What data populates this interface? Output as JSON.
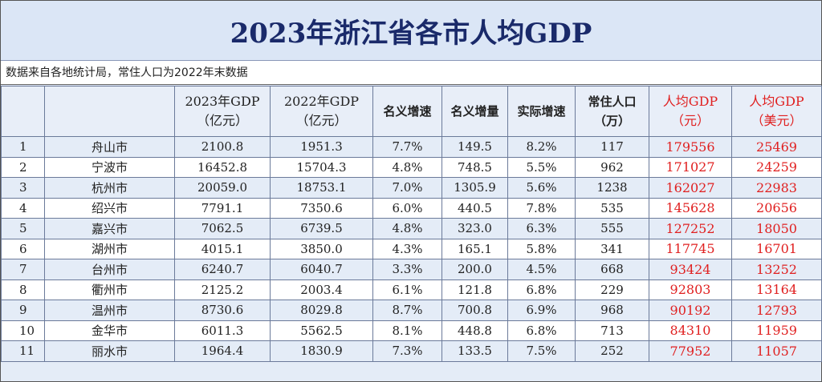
{
  "title": "2023年浙江省各市人均GDP",
  "note": "数据来自各地统计局，常住人口为2022年末数据",
  "headers": {
    "rank": "",
    "city": "",
    "gdp2023_l1": "2023年GDP",
    "gdp2023_l2": "（亿元）",
    "gdp2022_l1": "2022年GDP",
    "gdp2022_l2": "（亿元）",
    "nominal_growth": "名义增速",
    "nominal_increase": "名义增量",
    "real_growth": "实际增速",
    "population_l1": "常住人口",
    "population_l2": "（万）",
    "per_capita_cny_l1": "人均GDP",
    "per_capita_cny_l2": "（元）",
    "per_capita_usd_l1": "人均GDP",
    "per_capita_usd_l2": "（美元）"
  },
  "rows": [
    {
      "rank": "1",
      "city": "舟山市",
      "gdp2023": "2100.8",
      "gdp2022": "1951.3",
      "nominal_growth": "7.7%",
      "nominal_increase": "149.5",
      "real_growth": "8.2%",
      "population": "117",
      "per_capita_cny": "179556",
      "per_capita_usd": "25469"
    },
    {
      "rank": "2",
      "city": "宁波市",
      "gdp2023": "16452.8",
      "gdp2022": "15704.3",
      "nominal_growth": "4.8%",
      "nominal_increase": "748.5",
      "real_growth": "5.5%",
      "population": "962",
      "per_capita_cny": "171027",
      "per_capita_usd": "24259"
    },
    {
      "rank": "3",
      "city": "杭州市",
      "gdp2023": "20059.0",
      "gdp2022": "18753.1",
      "nominal_growth": "7.0%",
      "nominal_increase": "1305.9",
      "real_growth": "5.6%",
      "population": "1238",
      "per_capita_cny": "162027",
      "per_capita_usd": "22983"
    },
    {
      "rank": "4",
      "city": "绍兴市",
      "gdp2023": "7791.1",
      "gdp2022": "7350.6",
      "nominal_growth": "6.0%",
      "nominal_increase": "440.5",
      "real_growth": "7.8%",
      "population": "535",
      "per_capita_cny": "145628",
      "per_capita_usd": "20656"
    },
    {
      "rank": "5",
      "city": "嘉兴市",
      "gdp2023": "7062.5",
      "gdp2022": "6739.5",
      "nominal_growth": "4.8%",
      "nominal_increase": "323.0",
      "real_growth": "6.3%",
      "population": "555",
      "per_capita_cny": "127252",
      "per_capita_usd": "18050"
    },
    {
      "rank": "6",
      "city": "湖州市",
      "gdp2023": "4015.1",
      "gdp2022": "3850.0",
      "nominal_growth": "4.3%",
      "nominal_increase": "165.1",
      "real_growth": "5.8%",
      "population": "341",
      "per_capita_cny": "117745",
      "per_capita_usd": "16701"
    },
    {
      "rank": "7",
      "city": "台州市",
      "gdp2023": "6240.7",
      "gdp2022": "6040.7",
      "nominal_growth": "3.3%",
      "nominal_increase": "200.0",
      "real_growth": "4.5%",
      "population": "668",
      "per_capita_cny": "93424",
      "per_capita_usd": "13252"
    },
    {
      "rank": "8",
      "city": "衢州市",
      "gdp2023": "2125.2",
      "gdp2022": "2003.4",
      "nominal_growth": "6.1%",
      "nominal_increase": "121.8",
      "real_growth": "6.8%",
      "population": "229",
      "per_capita_cny": "92803",
      "per_capita_usd": "13164"
    },
    {
      "rank": "9",
      "city": "温州市",
      "gdp2023": "8730.6",
      "gdp2022": "8029.8",
      "nominal_growth": "8.7%",
      "nominal_increase": "700.8",
      "real_growth": "6.9%",
      "population": "968",
      "per_capita_cny": "90192",
      "per_capita_usd": "12793"
    },
    {
      "rank": "10",
      "city": "金华市",
      "gdp2023": "6011.3",
      "gdp2022": "5562.5",
      "nominal_growth": "8.1%",
      "nominal_increase": "448.8",
      "real_growth": "6.8%",
      "population": "713",
      "per_capita_cny": "84310",
      "per_capita_usd": "11959"
    },
    {
      "rank": "11",
      "city": "丽水市",
      "gdp2023": "1964.4",
      "gdp2022": "1830.9",
      "nominal_growth": "7.3%",
      "nominal_increase": "133.5",
      "real_growth": "7.5%",
      "population": "252",
      "per_capita_cny": "77952",
      "per_capita_usd": "11057"
    }
  ],
  "colors": {
    "title_text": "#1a2a6a",
    "highlight_red": "#e02020",
    "stripe_blue": "#e4ecf7"
  }
}
